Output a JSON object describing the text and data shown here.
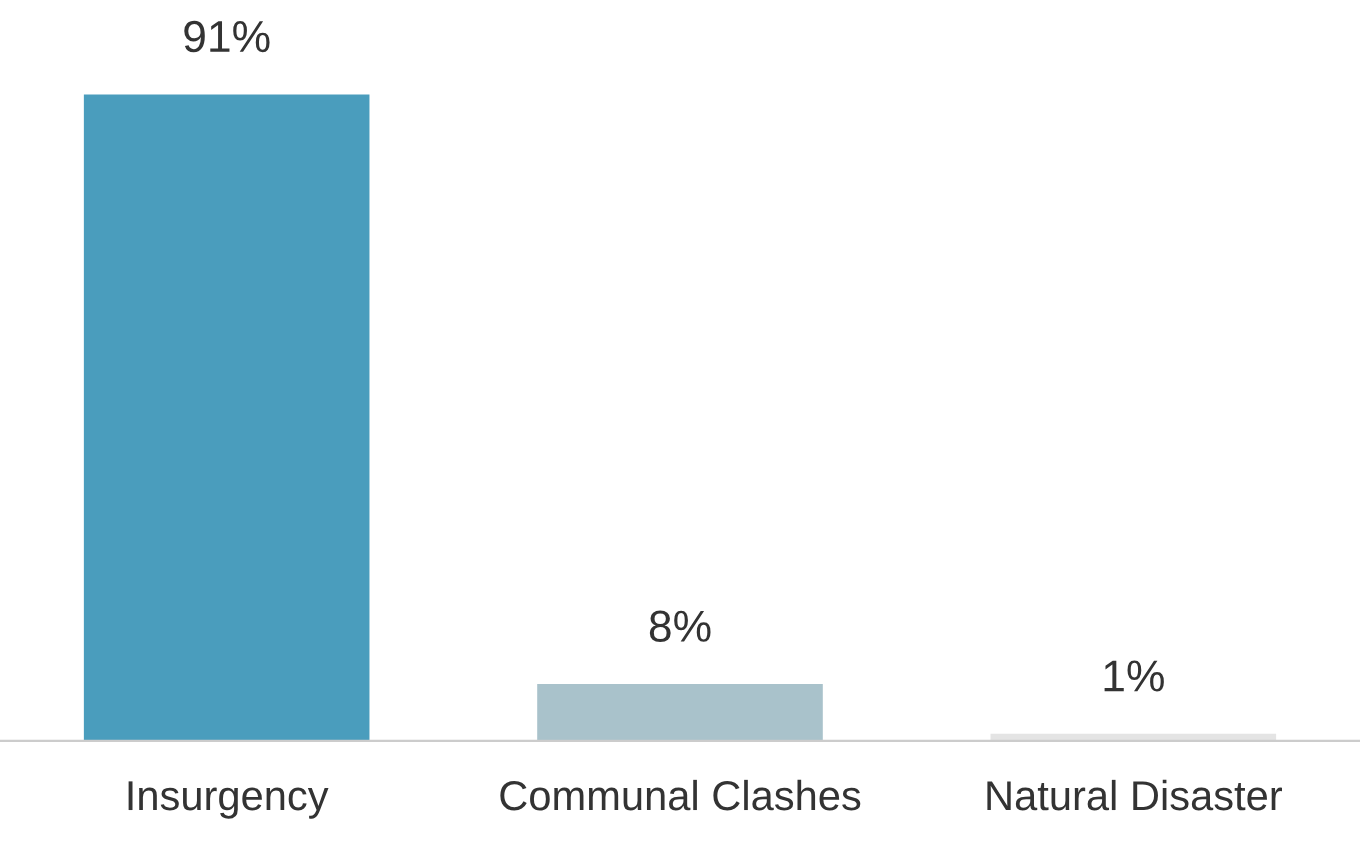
{
  "chart_data": {
    "type": "bar",
    "categories": [
      "Insurgency",
      "Communal Clashes",
      "Natural Disaster"
    ],
    "values": [
      91,
      8,
      1
    ],
    "colors": [
      "#4a9dbd",
      "#a9c2cb",
      "#e4e4e4"
    ],
    "value_labels": [
      "91%",
      "8%",
      "1%"
    ],
    "grid": false,
    "legend": false
  }
}
